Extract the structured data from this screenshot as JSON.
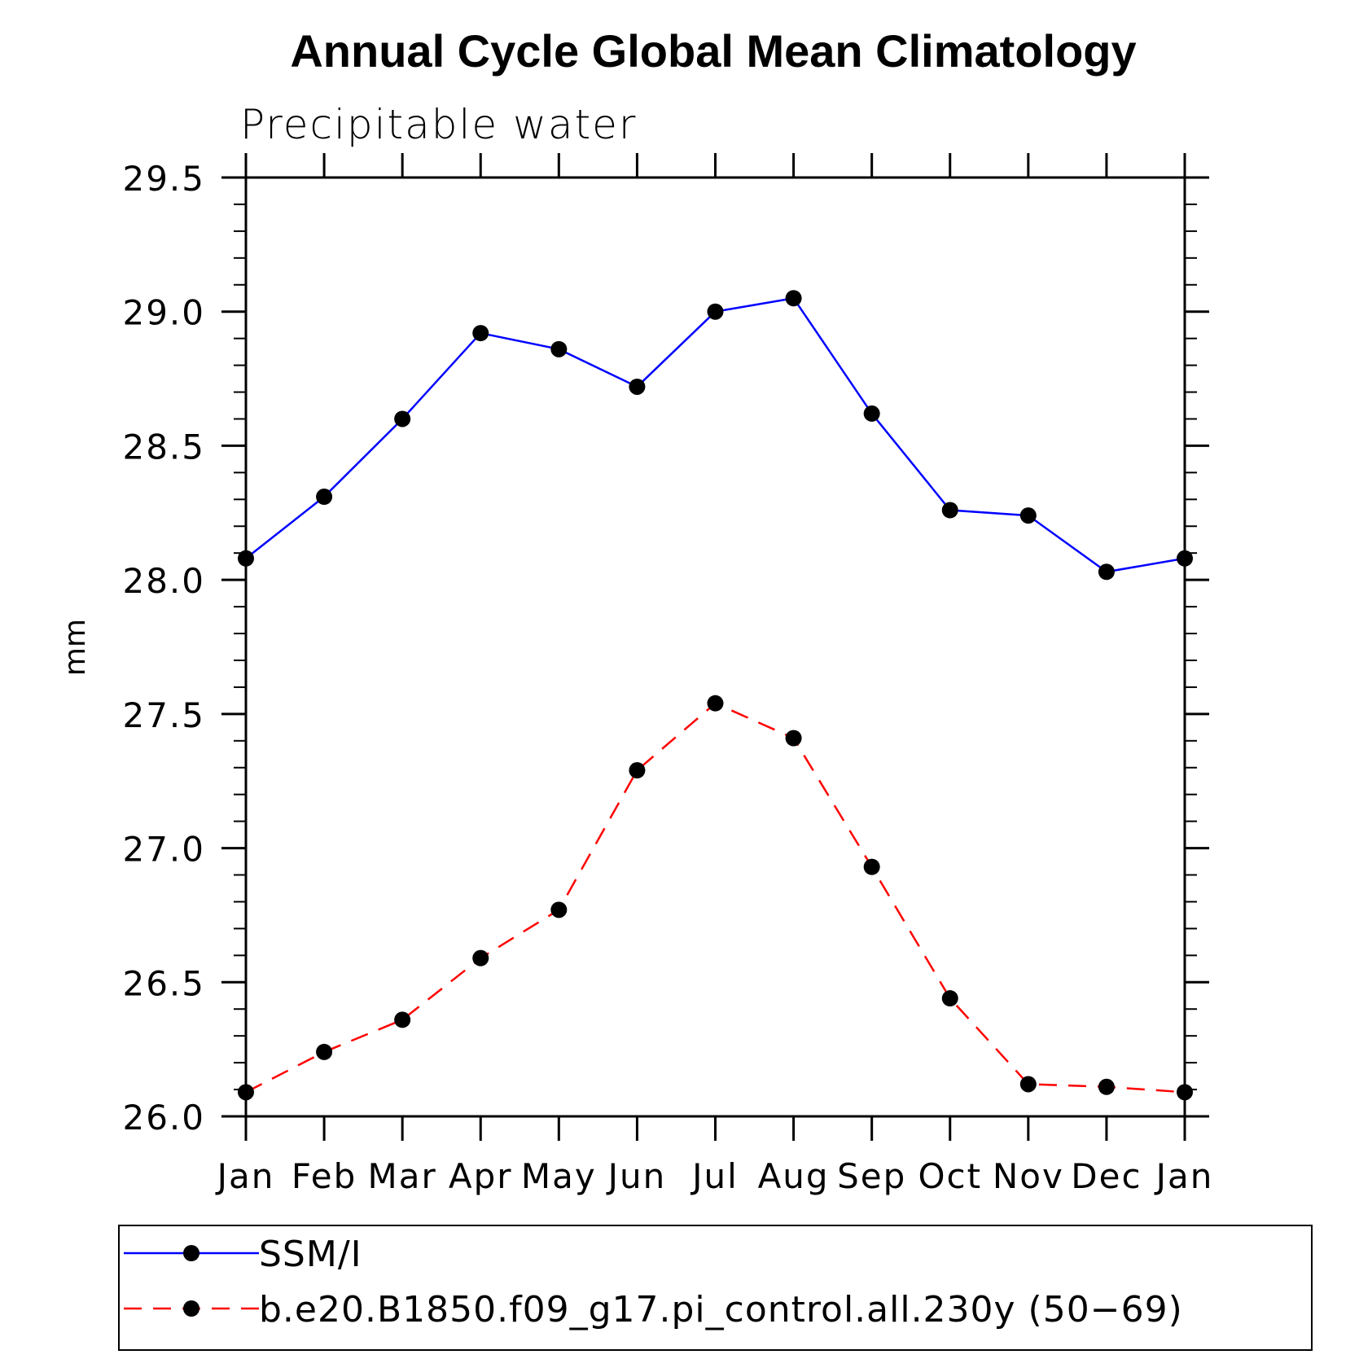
{
  "chart_data": {
    "type": "line",
    "title": "Annual Cycle Global Mean Climatology",
    "subtitle": "Precipitable water",
    "xlabel": "",
    "ylabel": "mm",
    "categories": [
      "Jan",
      "Feb",
      "Mar",
      "Apr",
      "May",
      "Jun",
      "Jul",
      "Aug",
      "Sep",
      "Oct",
      "Nov",
      "Dec",
      "Jan"
    ],
    "ylim": [
      26.0,
      29.5
    ],
    "yticks": [
      "26.0",
      "26.5",
      "27.0",
      "27.5",
      "28.0",
      "28.5",
      "29.0",
      "29.5"
    ],
    "ytick_values": [
      26.0,
      26.5,
      27.0,
      27.5,
      28.0,
      28.5,
      29.0,
      29.5
    ],
    "minor_tick_step": 0.1,
    "grid": false,
    "legend_position": "bottom",
    "series": [
      {
        "name": "SSM/I",
        "color": "#0000ff",
        "dash": "solid",
        "marker": "filled-circle",
        "values": [
          28.08,
          28.31,
          28.6,
          28.92,
          28.86,
          28.72,
          29.0,
          29.05,
          28.62,
          28.26,
          28.24,
          28.03,
          28.08
        ]
      },
      {
        "name": "b.e20.B1850.f09_g17.pi_control.all.230y (50−69)",
        "color": "#ff0000",
        "dash": "dashed",
        "marker": "filled-circle",
        "values": [
          26.09,
          26.24,
          26.36,
          26.59,
          26.77,
          27.29,
          27.54,
          27.41,
          26.93,
          26.44,
          26.12,
          26.11,
          26.09
        ]
      }
    ]
  }
}
